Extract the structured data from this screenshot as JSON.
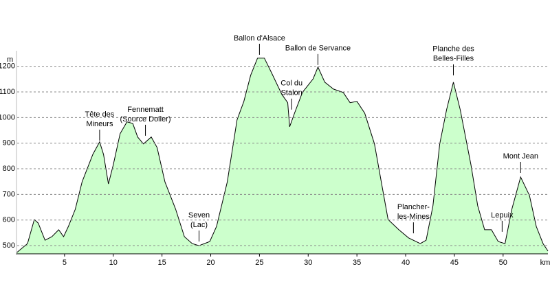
{
  "chart_data": {
    "type": "area",
    "xlabel": "km",
    "ylabel": "m",
    "color": "#ccffcc",
    "grid": true,
    "xlim": [
      0,
      54.6
    ],
    "ylim": [
      468,
      1250
    ],
    "xticks": [
      5,
      10,
      15,
      20,
      25,
      30,
      35,
      40,
      45,
      50
    ],
    "yticks": [
      500,
      600,
      700,
      800,
      900,
      1000,
      1100,
      1200
    ],
    "x": [
      0.1,
      1.2,
      1.9,
      2.3,
      3.0,
      3.7,
      4.4,
      4.9,
      5.4,
      6.1,
      6.8,
      7.9,
      8.6,
      9.0,
      9.5,
      10.0,
      10.7,
      11.4,
      12.0,
      12.5,
      13.1,
      13.9,
      14.5,
      15.3,
      16.4,
      17.3,
      18.1,
      18.8,
      19.9,
      20.6,
      21.7,
      22.7,
      23.4,
      24.1,
      24.8,
      25.5,
      26.2,
      27.3,
      27.9,
      28.1,
      28.6,
      29.4,
      30.5,
      31.0,
      31.7,
      32.6,
      33.6,
      34.3,
      35.0,
      35.8,
      36.8,
      37.5,
      38.2,
      39.3,
      40.3,
      41.5,
      42.1,
      42.8,
      43.5,
      44.2,
      44.9,
      45.6,
      46.7,
      47.4,
      48.1,
      48.8,
      49.5,
      50.2,
      50.9,
      51.8,
      52.7,
      53.4,
      54.1,
      54.6
    ],
    "values": [
      473,
      508,
      602,
      588,
      521,
      535,
      562,
      535,
      575,
      642,
      749,
      856,
      905,
      856,
      741,
      816,
      937,
      983,
      977,
      924,
      897,
      924,
      883,
      749,
      642,
      535,
      508,
      500,
      516,
      575,
      749,
      991,
      1063,
      1165,
      1232,
      1232,
      1178,
      1090,
      1058,
      964,
      1017,
      1098,
      1151,
      1197,
      1138,
      1111,
      1098,
      1058,
      1063,
      1017,
      897,
      749,
      602,
      562,
      530,
      508,
      521,
      655,
      897,
      1031,
      1138,
      1031,
      816,
      655,
      562,
      562,
      516,
      508,
      642,
      768,
      696,
      575,
      508,
      479
    ],
    "annotations": [
      {
        "lines": [
          "Tête des",
          "Mineurs"
        ],
        "x": 8.6,
        "y": 910
      },
      {
        "lines": [
          "Fennematt",
          "(Source Doller)"
        ],
        "x": 13.3,
        "y": 929
      },
      {
        "lines": [
          "Seven",
          "(Lac)"
        ],
        "x": 18.8,
        "y": 516
      },
      {
        "lines": [
          "Ballon d'Alsace"
        ],
        "x": 25.0,
        "y": 1245
      },
      {
        "lines": [
          "Col du",
          "Stalon"
        ],
        "x": 28.3,
        "y": 1031
      },
      {
        "lines": [
          "Ballon de Servance"
        ],
        "x": 31.0,
        "y": 1205
      },
      {
        "lines": [
          "Plancher-",
          "les-Mines"
        ],
        "x": 40.8,
        "y": 548
      },
      {
        "lines": [
          "Planche des",
          "Belles-Filles"
        ],
        "x": 44.9,
        "y": 1165
      },
      {
        "lines": [
          "Lepuix"
        ],
        "x": 49.9,
        "y": 554
      },
      {
        "lines": [
          "Mont Jean"
        ],
        "x": 51.8,
        "y": 784
      }
    ]
  }
}
